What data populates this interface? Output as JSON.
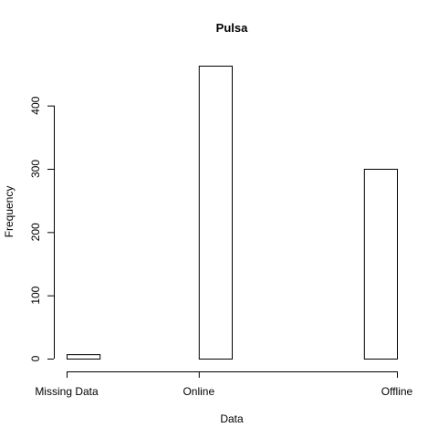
{
  "chart_data": {
    "type": "bar",
    "title": "Pulsa",
    "xlabel": "Data",
    "ylabel": "Frequency",
    "categories": [
      "Missing Data",
      "Online",
      "Offline"
    ],
    "values": [
      7,
      463,
      300
    ],
    "x_ticks": [
      0,
      2,
      5
    ],
    "bin_starts": [
      0,
      2,
      4.5
    ],
    "bin_width": 0.5,
    "x_range": [
      0,
      5
    ],
    "y_ticks": [
      0,
      100,
      200,
      300,
      400
    ],
    "ylim": [
      0,
      463
    ],
    "grid": false,
    "legend": "none"
  }
}
